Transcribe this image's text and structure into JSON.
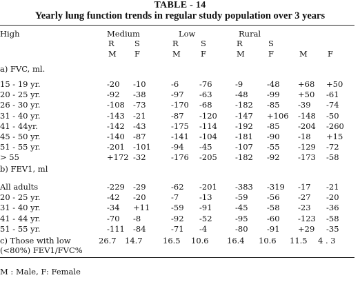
{
  "title": "TABLE - 14",
  "subtitle": "Yearly lung function trends in regular study population over 3 years",
  "header": {
    "corner": "High",
    "groups": [
      "Medium",
      "Low",
      "Rural"
    ],
    "row2": [
      "R",
      "S",
      "R",
      "S",
      "R",
      "S"
    ],
    "row3": [
      "M",
      "F",
      "M",
      "F",
      "M",
      "F",
      "M",
      "F"
    ]
  },
  "section_a": "a) FVC, ml.",
  "fvc_rows": [
    {
      "label": "15 - 19 yr.",
      "values": [
        "-20",
        "-10",
        "-6",
        "-76",
        "-9",
        "-48",
        "+68",
        "+50"
      ]
    },
    {
      "label": "20 - 25 yr.",
      "values": [
        "-92",
        "-38",
        "-97",
        "-63",
        "-48",
        "-99",
        "+50",
        "-61"
      ]
    },
    {
      "label": "26 - 30 yr.",
      "values": [
        "-108",
        "-73",
        "-170",
        "-68",
        "-182",
        "-85",
        "-39",
        "-74"
      ]
    },
    {
      "label": "31 - 40 yr.",
      "values": [
        "-143",
        "-21",
        "-87",
        "-120",
        "-147",
        "+106",
        "-148",
        "-50"
      ]
    },
    {
      "label": "41 - 44yr.",
      "values": [
        "-142",
        "-43",
        "-175",
        "-114",
        "-192",
        "-85",
        "-204",
        "-260"
      ]
    },
    {
      "label": "45 - 50 yr.",
      "values": [
        "-140",
        "-87",
        "-141",
        "-104",
        "-181",
        "-90",
        "-18",
        "+15"
      ]
    },
    {
      "label": "51 - 55 yr.",
      "values": [
        "-201",
        "-101",
        "-94",
        "-45",
        "-107",
        "-55",
        "-129",
        "-72"
      ]
    },
    {
      "label": "> 55",
      "values": [
        "+172",
        "-32",
        "-176",
        "-205",
        "-182",
        "-92",
        "-173",
        "-58"
      ]
    }
  ],
  "section_b": "b) FEV1, ml",
  "fev_rows": [
    {
      "label": "All adults",
      "values": [
        "-229",
        "-29",
        "-62",
        "-201",
        "-383",
        "-319",
        "-17",
        "-21"
      ]
    },
    {
      "label": "20 - 25 yr.",
      "values": [
        "-42",
        "-20",
        "-7",
        "-13",
        "-59",
        "-56",
        "-27",
        "-20"
      ]
    },
    {
      "label": "31 - 40 yr.",
      "values": [
        "-34",
        "+11",
        "-59",
        "-91",
        "-45",
        "-58",
        "-23",
        "-36"
      ]
    },
    {
      "label": "41 - 44 yr.",
      "values": [
        "-70",
        "-8",
        "-92",
        "-52",
        "-95",
        "-60",
        "-123",
        "-58"
      ]
    },
    {
      "label": "51 - 55 yr.",
      "values": [
        "-111",
        "-84",
        "-71",
        "-4",
        "-80",
        "-91",
        "+29",
        "-35"
      ]
    }
  ],
  "section_c": {
    "label": "c)  Those with low",
    "label2": "(<80%) FEV1/FVC%",
    "values": [
      "26.7",
      "14.7",
      "16.5",
      "10.6",
      "16.4",
      "10.6",
      "11.5",
      "4  .  3"
    ]
  },
  "footnote": "M : Male,  F: Female"
}
